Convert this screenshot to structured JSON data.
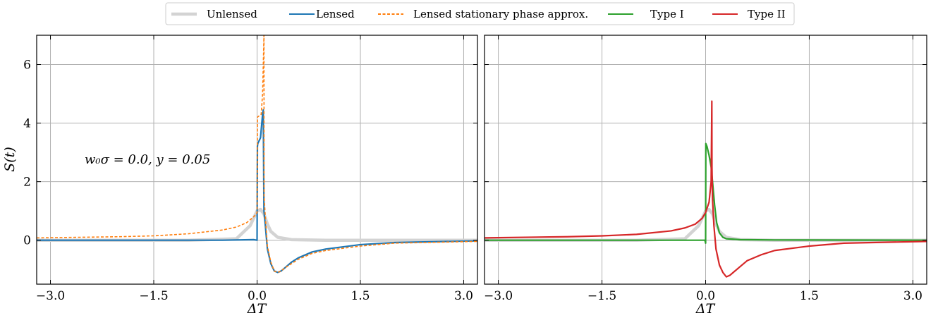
{
  "legend": {
    "entries": [
      {
        "label": "Unlensed",
        "color": "#d3d3d3",
        "style": "solid-thick"
      },
      {
        "label": "Lensed",
        "color": "#1f77b4",
        "style": "solid"
      },
      {
        "label": "Lensed stationary phase approx.",
        "color": "#ff7f0e",
        "style": "dashed"
      },
      {
        "label": "Type I",
        "color": "#2ca02c",
        "style": "solid"
      },
      {
        "label": "Type II",
        "color": "#d62728",
        "style": "solid"
      }
    ]
  },
  "chart_data": [
    {
      "type": "line",
      "xlabel": "ΔT",
      "ylabel": "S(t)",
      "xlim": [
        -3.2,
        3.2
      ],
      "ylim": [
        -1.5,
        7.0
      ],
      "xticks": [
        "−3.0",
        "−1.5",
        "0.0",
        "1.5",
        "3.0"
      ],
      "xtick_values": [
        -3.0,
        -1.5,
        0.0,
        1.5,
        3.0
      ],
      "yticks": [
        "0",
        "2",
        "4",
        "6"
      ],
      "ytick_values": [
        0,
        2,
        4,
        6
      ],
      "grid": true,
      "annotation": "w₀σ = 0.0, y = 0.05",
      "series": [
        {
          "name": "Unlensed",
          "color": "#d3d3d3",
          "x": [
            -3.2,
            -1.0,
            -0.3,
            -0.1,
            0.0,
            0.05,
            0.1,
            0.15,
            0.2,
            0.3,
            0.5,
            1.0,
            3.2
          ],
          "y": [
            0.0,
            0.0,
            0.05,
            0.5,
            1.0,
            1.05,
            0.9,
            0.55,
            0.3,
            0.1,
            0.02,
            0.0,
            0.0
          ]
        },
        {
          "name": "Lensed",
          "color": "#1f77b4",
          "x": [
            -3.2,
            -1.5,
            -0.5,
            -0.05,
            0.0,
            0.005,
            0.01,
            0.05,
            0.08,
            0.09,
            0.1,
            0.12,
            0.15,
            0.2,
            0.25,
            0.3,
            0.35,
            0.4,
            0.5,
            0.6,
            0.8,
            1.0,
            1.5,
            2.0,
            3.2
          ],
          "y": [
            0.0,
            0.0,
            0.0,
            0.02,
            0.0,
            3.2,
            3.3,
            3.5,
            4.3,
            4.45,
            1.0,
            0.5,
            -0.3,
            -0.8,
            -1.05,
            -1.1,
            -1.05,
            -0.95,
            -0.75,
            -0.6,
            -0.4,
            -0.3,
            -0.15,
            -0.08,
            -0.02
          ]
        },
        {
          "name": "Lensed stationary phase approx.",
          "color": "#ff7f0e",
          "x": [
            -3.2,
            -2.0,
            -1.5,
            -1.0,
            -0.5,
            -0.3,
            -0.15,
            -0.05,
            -0.01,
            0.0,
            0.005,
            0.06,
            0.08,
            0.095,
            0.1,
            0.102,
            0.12,
            0.15,
            0.2,
            0.25,
            0.3,
            0.35,
            0.4,
            0.5,
            0.6,
            0.8,
            1.0,
            1.5,
            2.0,
            3.2
          ],
          "y": [
            0.08,
            0.12,
            0.15,
            0.22,
            0.35,
            0.45,
            0.6,
            0.8,
            0.9,
            0.95,
            4.2,
            4.3,
            5.0,
            6.5,
            7.0,
            1.5,
            0.8,
            -0.2,
            -0.75,
            -1.05,
            -1.1,
            -1.05,
            -0.95,
            -0.8,
            -0.65,
            -0.45,
            -0.35,
            -0.2,
            -0.1,
            -0.04
          ]
        }
      ]
    },
    {
      "type": "line",
      "xlabel": "ΔT",
      "ylabel": "",
      "xlim": [
        -3.2,
        3.2
      ],
      "ylim": [
        -1.5,
        7.0
      ],
      "xticks": [
        "−3.0",
        "−1.5",
        "0.0",
        "1.5",
        "3.0"
      ],
      "xtick_values": [
        -3.0,
        -1.5,
        0.0,
        1.5,
        3.0
      ],
      "yticks": [],
      "ytick_values": [
        0,
        2,
        4,
        6
      ],
      "grid": true,
      "series": [
        {
          "name": "Unlensed",
          "color": "#d3d3d3",
          "x": [
            -3.2,
            -1.0,
            -0.3,
            -0.1,
            0.0,
            0.05,
            0.1,
            0.15,
            0.2,
            0.3,
            0.5,
            1.0,
            3.2
          ],
          "y": [
            0.0,
            0.0,
            0.05,
            0.5,
            1.0,
            1.05,
            0.9,
            0.55,
            0.3,
            0.1,
            0.02,
            0.0,
            0.0
          ]
        },
        {
          "name": "Type I",
          "color": "#2ca02c",
          "x": [
            -3.2,
            -1.5,
            -0.5,
            -0.05,
            -0.01,
            0.0,
            0.003,
            0.02,
            0.05,
            0.08,
            0.1,
            0.13,
            0.16,
            0.2,
            0.25,
            0.3,
            0.5,
            1.0,
            3.2
          ],
          "y": [
            0.0,
            0.0,
            0.0,
            0.0,
            0.0,
            -0.1,
            3.3,
            3.2,
            2.9,
            2.5,
            2.0,
            1.2,
            0.6,
            0.25,
            0.1,
            0.05,
            0.02,
            0.01,
            0.0
          ]
        },
        {
          "name": "Type II",
          "color": "#d62728",
          "x": [
            -3.2,
            -2.0,
            -1.5,
            -1.0,
            -0.5,
            -0.3,
            -0.15,
            -0.05,
            0.0,
            0.05,
            0.08,
            0.09,
            0.092,
            0.1,
            0.12,
            0.15,
            0.2,
            0.25,
            0.3,
            0.35,
            0.4,
            0.5,
            0.6,
            0.8,
            1.0,
            1.5,
            2.0,
            3.2
          ],
          "y": [
            0.08,
            0.12,
            0.15,
            0.2,
            0.32,
            0.42,
            0.55,
            0.75,
            0.95,
            1.3,
            2.0,
            4.75,
            2.5,
            1.4,
            0.5,
            -0.3,
            -0.85,
            -1.1,
            -1.25,
            -1.2,
            -1.1,
            -0.9,
            -0.7,
            -0.5,
            -0.35,
            -0.2,
            -0.1,
            -0.04
          ]
        }
      ]
    }
  ]
}
